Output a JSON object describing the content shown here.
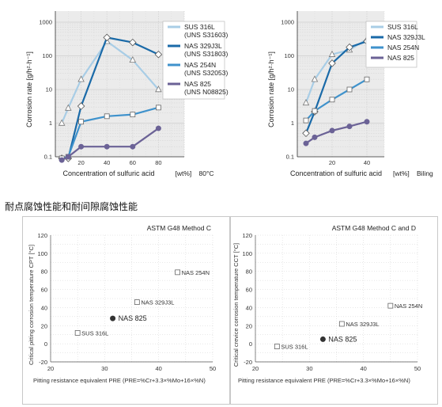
{
  "heading": "耐点腐蚀性能和耐间隙腐蚀性能",
  "series_styles": [
    {
      "name": "SUS 316L",
      "sub": "(UNS S31603)",
      "color": "#a8cde6",
      "marker": "open-triangle"
    },
    {
      "name": "NAS 329J3L",
      "sub": "(UNS S31803)",
      "color": "#1a6aa8",
      "marker": "open-diamond"
    },
    {
      "name": "NAS 254N",
      "sub": "(UNS S32053)",
      "color": "#3f92cc",
      "marker": "open-square"
    },
    {
      "name": "NAS 825",
      "sub": "(UNS N08825)",
      "color": "#6b6296",
      "marker": "filled-circle"
    }
  ],
  "chart_data": [
    {
      "type": "line",
      "ylabel": "Corrosion rate [g/h²·h⁻¹]",
      "xlabel": "Concentration of sulfuric acid",
      "xunit": "[wt%]",
      "condition": "80°C",
      "y_scale": "log",
      "ylim": [
        0.1,
        1000
      ],
      "yticks": [
        {
          "v": 1000,
          "label": "1000"
        },
        {
          "v": 100,
          "label": "100"
        },
        {
          "v": 10,
          "label": "10"
        },
        {
          "v": 1,
          "label": "1"
        },
        {
          "v": 0.1,
          "label": "0.1"
        }
      ],
      "xlim": [
        0,
        100
      ],
      "xticks": [
        0,
        20,
        40,
        60,
        80,
        100
      ],
      "xticks_labeled": [
        20,
        40,
        60,
        80
      ],
      "grid": true,
      "legend": {
        "placement": "top-right",
        "text_lines": [
          [
            "SUS 316L",
            "(UNS S31603)"
          ],
          [
            "NAS 329J3L",
            "(UNS S31803)"
          ],
          [
            "NAS 254N",
            "(UNS S32053)"
          ],
          [
            "NAS 825",
            "(UNS N08825)"
          ]
        ]
      },
      "series": [
        {
          "style": 0,
          "points": [
            [
              5,
              1
            ],
            [
              10,
              2.8
            ],
            [
              20,
              20
            ],
            [
              40,
              270
            ],
            [
              60,
              75
            ],
            [
              80,
              10
            ]
          ]
        },
        {
          "style": 1,
          "points": [
            [
              5,
              0.09
            ],
            [
              10,
              0.09
            ],
            [
              20,
              3.2
            ],
            [
              40,
              350
            ],
            [
              60,
              250
            ],
            [
              80,
              110
            ]
          ]
        },
        {
          "style": 2,
          "points": [
            [
              5,
              0.09
            ],
            [
              10,
              0.1
            ],
            [
              20,
              1.1
            ],
            [
              40,
              1.6
            ],
            [
              60,
              1.8
            ],
            [
              80,
              2.9
            ]
          ]
        },
        {
          "style": 3,
          "points": [
            [
              5,
              0.08
            ],
            [
              10,
              0.1
            ],
            [
              20,
              0.2
            ],
            [
              40,
              0.2
            ],
            [
              60,
              0.2
            ],
            [
              80,
              0.7
            ]
          ]
        }
      ]
    },
    {
      "type": "line",
      "ylabel": "Corrosion rate [g/h²·h⁻¹]",
      "xlabel": "Concentration of sulfuric acid",
      "xunit": "[wt%]",
      "condition": "Biling",
      "y_scale": "log",
      "ylim": [
        0.1,
        1000
      ],
      "yticks": [
        {
          "v": 1000,
          "label": "1000"
        },
        {
          "v": 100,
          "label": "100"
        },
        {
          "v": 10,
          "label": "10"
        },
        {
          "v": 1,
          "label": "1"
        },
        {
          "v": 0.1,
          "label": "0.1"
        }
      ],
      "xlim": [
        0,
        50
      ],
      "xticks": [
        0,
        20,
        40
      ],
      "xticks_labeled": [
        20,
        40
      ],
      "grid": true,
      "legend": {
        "placement": "top-right",
        "text_lines": [
          [
            "SUS 316L"
          ],
          [
            "NAS 329J3L"
          ],
          [
            "NAS 254N"
          ],
          [
            "NAS 825"
          ]
        ]
      },
      "series": [
        {
          "style": 0,
          "points": [
            [
              5,
              4
            ],
            [
              10,
              20
            ],
            [
              20,
              110
            ],
            [
              30,
              150
            ],
            [
              40,
              310
            ]
          ]
        },
        {
          "style": 1,
          "points": [
            [
              5,
              0.5
            ],
            [
              10,
              2.2
            ],
            [
              20,
              60
            ],
            [
              30,
              180
            ],
            [
              40,
              270
            ]
          ]
        },
        {
          "style": 2,
          "points": [
            [
              5,
              1.2
            ],
            [
              10,
              2.3
            ],
            [
              20,
              5
            ],
            [
              30,
              10
            ],
            [
              40,
              20
            ]
          ]
        },
        {
          "style": 3,
          "points": [
            [
              5,
              0.25
            ],
            [
              10,
              0.38
            ],
            [
              20,
              0.6
            ],
            [
              30,
              0.8
            ],
            [
              40,
              1.1
            ]
          ]
        }
      ]
    },
    {
      "type": "scatter",
      "title": "ASTM G48 Method C",
      "ylabel": "Critical pitting corrosion temperature CPT [°C]",
      "xlabel": "Pitting resistance equivalent  PRE (PRE=%Cr+3.3×%Mo+16×%N)",
      "xlim": [
        20,
        50
      ],
      "xticks": [
        20,
        30,
        40,
        50
      ],
      "ylim": [
        -20,
        120
      ],
      "yticks": [
        -20,
        0,
        20,
        40,
        60,
        80,
        100,
        120
      ],
      "grid": true,
      "points": [
        {
          "label": "SUS 316L",
          "x": 25,
          "y": 12,
          "marker": "open-square"
        },
        {
          "label": "NAS 825",
          "x": 31.5,
          "y": 28,
          "marker": "filled-circle"
        },
        {
          "label": "NAS 329J3L",
          "x": 36,
          "y": 46,
          "marker": "open-square"
        },
        {
          "label": "NAS 254N",
          "x": 43.5,
          "y": 79,
          "marker": "open-square"
        }
      ]
    },
    {
      "type": "scatter",
      "title": "ASTM G48 Method C and D",
      "ylabel": "Critical crevice corrosion temperature CCT [°C]",
      "xlabel": "Pitting resistance equivalent  PRE (PRE=%Cr+3.3×%Mo+16×%N)",
      "xlim": [
        20,
        50
      ],
      "xticks": [
        20,
        30,
        40,
        50
      ],
      "ylim": [
        -20,
        120
      ],
      "yticks": [
        -20,
        0,
        20,
        40,
        60,
        80,
        100,
        120
      ],
      "grid": true,
      "points": [
        {
          "label": "SUS 316L",
          "x": 24,
          "y": -3,
          "marker": "open-square"
        },
        {
          "label": "NAS 825",
          "x": 32.5,
          "y": 5,
          "marker": "filled-circle"
        },
        {
          "label": "NAS 329J3L",
          "x": 36,
          "y": 22,
          "marker": "open-square"
        },
        {
          "label": "NAS 254N",
          "x": 45,
          "y": 42,
          "marker": "open-square"
        }
      ]
    }
  ]
}
